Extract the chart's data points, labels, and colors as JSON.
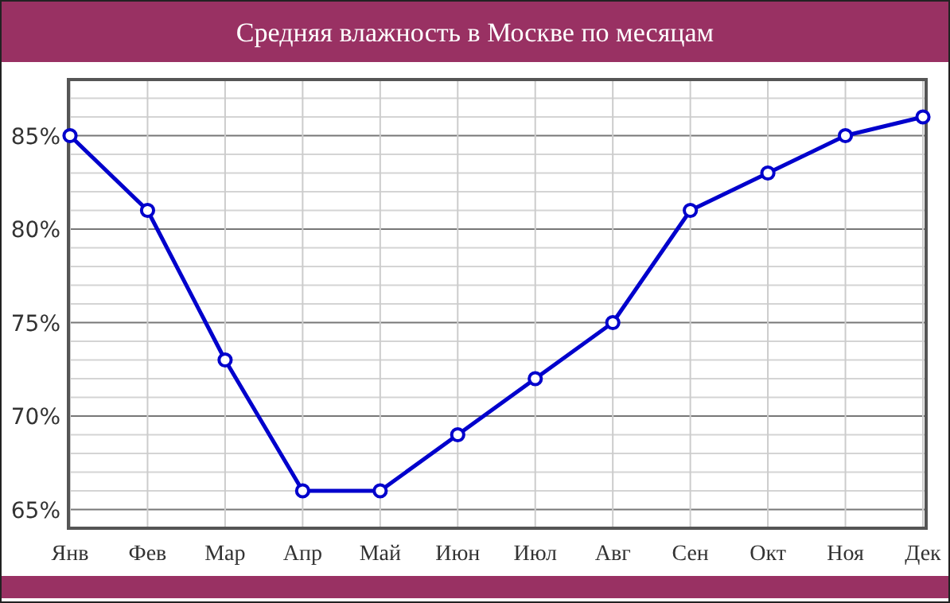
{
  "chart_data": {
    "type": "line",
    "title": "Средняя влажность в Москве по месяцам",
    "categories": [
      "Янв",
      "Фев",
      "Мар",
      "Апр",
      "Май",
      "Июн",
      "Июл",
      "Авг",
      "Сен",
      "Окт",
      "Ноя",
      "Дек"
    ],
    "series": [
      {
        "color": "#0000cc",
        "values": [
          85,
          81,
          73,
          66,
          66,
          69,
          72,
          75,
          81,
          83,
          85,
          86
        ]
      }
    ],
    "ylim": [
      64,
      88
    ],
    "yticks": [
      {
        "value": 65,
        "label": "65%"
      },
      {
        "value": 66,
        "label": null
      },
      {
        "value": 67,
        "label": null
      },
      {
        "value": 68,
        "label": null
      },
      {
        "value": 69,
        "label": null
      },
      {
        "value": 70,
        "label": "70%"
      },
      {
        "value": 71,
        "label": null
      },
      {
        "value": 72,
        "label": null
      },
      {
        "value": 73,
        "label": null
      },
      {
        "value": 74,
        "label": null
      },
      {
        "value": 75,
        "label": "75%"
      },
      {
        "value": 76,
        "label": null
      },
      {
        "value": 77,
        "label": null
      },
      {
        "value": 78,
        "label": null
      },
      {
        "value": 79,
        "label": null
      },
      {
        "value": 80,
        "label": "80%"
      },
      {
        "value": 81,
        "label": null
      },
      {
        "value": 82,
        "label": null
      },
      {
        "value": 83,
        "label": null
      },
      {
        "value": 84,
        "label": null
      },
      {
        "value": 85,
        "label": "85%"
      },
      {
        "value": 86,
        "label": null
      },
      {
        "value": 87,
        "label": null
      }
    ],
    "grid": true,
    "marker": "circle",
    "line_style": "solid"
  }
}
